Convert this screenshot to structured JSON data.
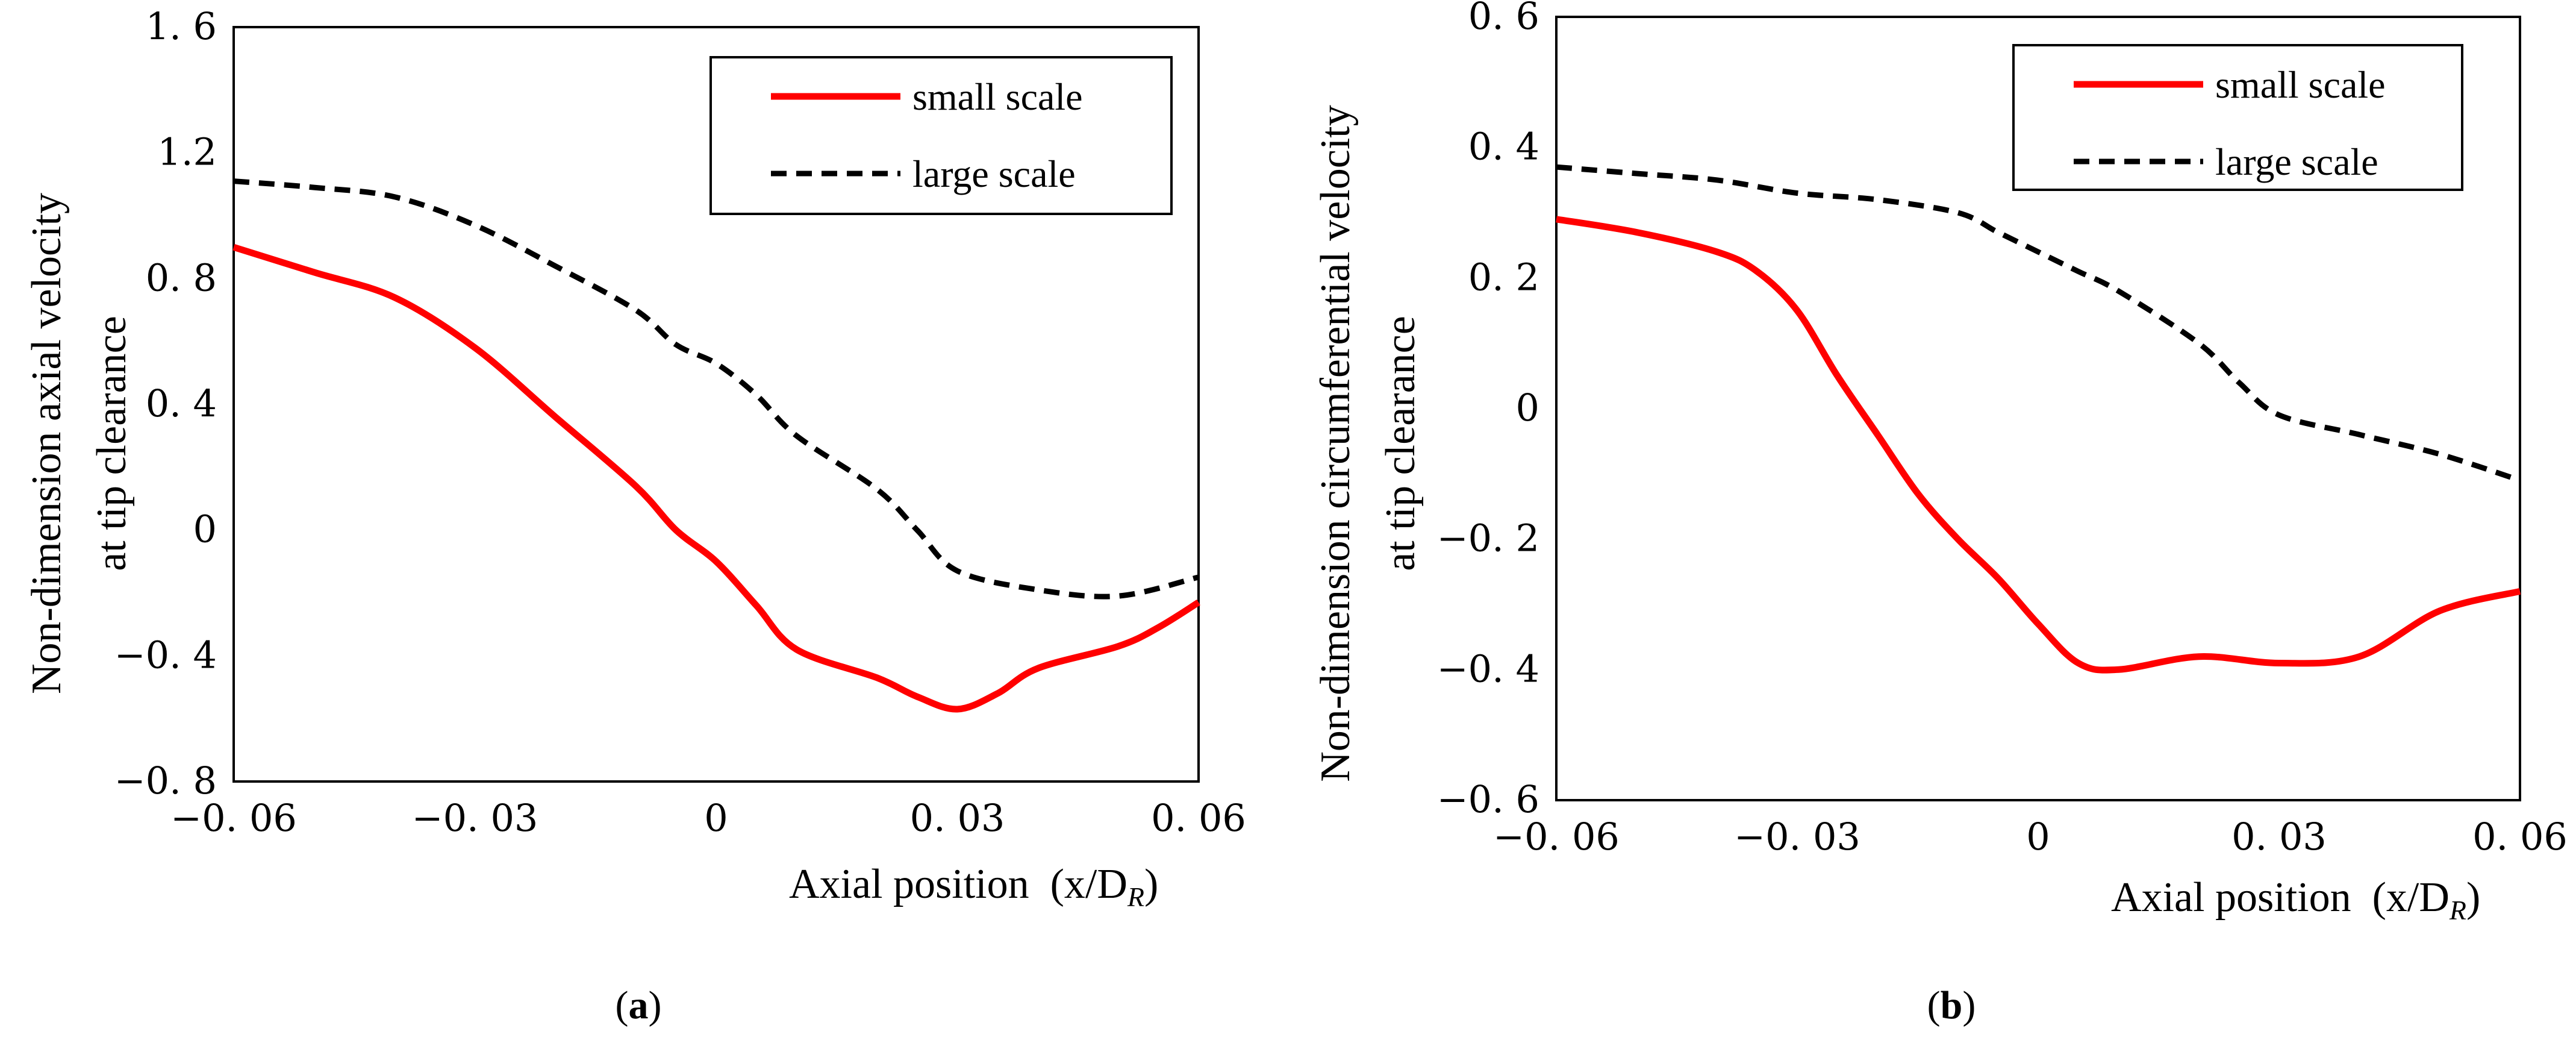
{
  "colors": {
    "small_scale": "#ff0000",
    "large_scale": "#000000"
  },
  "chart_data": [
    {
      "type": "line",
      "panel_label": "a",
      "ylabel": [
        "Non-dimension axial velocity",
        "at tip clearance"
      ],
      "xlabel": "Axial position  (x/D",
      "xlabel_subscript": "R",
      "xlabel_close": ")",
      "xlim": [
        -0.06,
        0.06
      ],
      "ylim": [
        -0.8,
        1.6
      ],
      "xticks": [
        -0.06,
        -0.03,
        0,
        0.03,
        0.06
      ],
      "xtick_labels": [
        "−0. 06",
        "−0. 03",
        "0",
        "0. 03",
        "0. 06"
      ],
      "yticks": [
        -0.8,
        -0.4,
        0,
        0.4,
        0.8,
        1.2,
        1.6
      ],
      "ytick_labels": [
        "−0. 8",
        "−0. 4",
        "0",
        "0. 4",
        "0. 8",
        "1.2",
        "1. 6"
      ],
      "grid": false,
      "legend_position": "top-right",
      "series": [
        {
          "name": "small scale",
          "style": "solid",
          "x": [
            -0.06,
            -0.05,
            -0.04,
            -0.03,
            -0.02,
            -0.01,
            -0.005,
            0,
            0.005,
            0.01,
            0.02,
            0.025,
            0.03,
            0.035,
            0.04,
            0.05,
            0.055,
            0.06
          ],
          "y": [
            0.9,
            0.82,
            0.74,
            0.58,
            0.36,
            0.14,
            0.0,
            -0.1,
            -0.24,
            -0.38,
            -0.47,
            -0.53,
            -0.57,
            -0.52,
            -0.44,
            -0.37,
            -0.31,
            -0.23
          ]
        },
        {
          "name": "large scale",
          "style": "dashed",
          "x": [
            -0.06,
            -0.05,
            -0.04,
            -0.03,
            -0.02,
            -0.01,
            -0.005,
            0,
            0.005,
            0.01,
            0.02,
            0.025,
            0.03,
            0.04,
            0.05,
            0.06
          ],
          "y": [
            1.11,
            1.09,
            1.06,
            0.97,
            0.84,
            0.7,
            0.59,
            0.53,
            0.43,
            0.3,
            0.13,
            0.0,
            -0.13,
            -0.19,
            -0.21,
            -0.15
          ]
        }
      ]
    },
    {
      "type": "line",
      "panel_label": "b",
      "ylabel": [
        "Non-dimension circumferential velocity",
        "at tip clearance"
      ],
      "xlabel": "Axial position  (x/D",
      "xlabel_subscript": "R",
      "xlabel_close": ")",
      "xlim": [
        -0.06,
        0.06
      ],
      "ylim": [
        -0.6,
        0.6
      ],
      "xticks": [
        -0.06,
        -0.03,
        0,
        0.03,
        0.06
      ],
      "xtick_labels": [
        "−0. 06",
        "−0. 03",
        "0",
        "0. 03",
        "0. 06"
      ],
      "yticks": [
        -0.6,
        -0.4,
        -0.2,
        0,
        0.2,
        0.4,
        0.6
      ],
      "ytick_labels": [
        "−0. 6",
        "−0. 4",
        "−0. 2",
        "0",
        "0. 2",
        "0. 4",
        "0. 6"
      ],
      "grid": false,
      "legend_position": "top-right",
      "series": [
        {
          "name": "small scale",
          "style": "solid",
          "x": [
            -0.06,
            -0.05,
            -0.04,
            -0.035,
            -0.03,
            -0.025,
            -0.02,
            -0.015,
            -0.01,
            -0.005,
            0,
            0.005,
            0.01,
            0.02,
            0.03,
            0.04,
            0.05,
            0.06
          ],
          "y": [
            0.29,
            0.27,
            0.24,
            0.21,
            0.15,
            0.05,
            -0.04,
            -0.13,
            -0.2,
            -0.26,
            -0.33,
            -0.39,
            -0.4,
            -0.38,
            -0.39,
            -0.38,
            -0.31,
            -0.28
          ]
        },
        {
          "name": "large scale",
          "style": "dashed",
          "x": [
            -0.06,
            -0.05,
            -0.04,
            -0.03,
            -0.02,
            -0.01,
            -0.005,
            0,
            0.005,
            0.01,
            0.02,
            0.025,
            0.03,
            0.04,
            0.05,
            0.06
          ],
          "y": [
            0.37,
            0.36,
            0.35,
            0.33,
            0.32,
            0.3,
            0.27,
            0.24,
            0.21,
            0.18,
            0.1,
            0.04,
            -0.01,
            -0.04,
            -0.07,
            -0.11
          ]
        }
      ]
    }
  ]
}
